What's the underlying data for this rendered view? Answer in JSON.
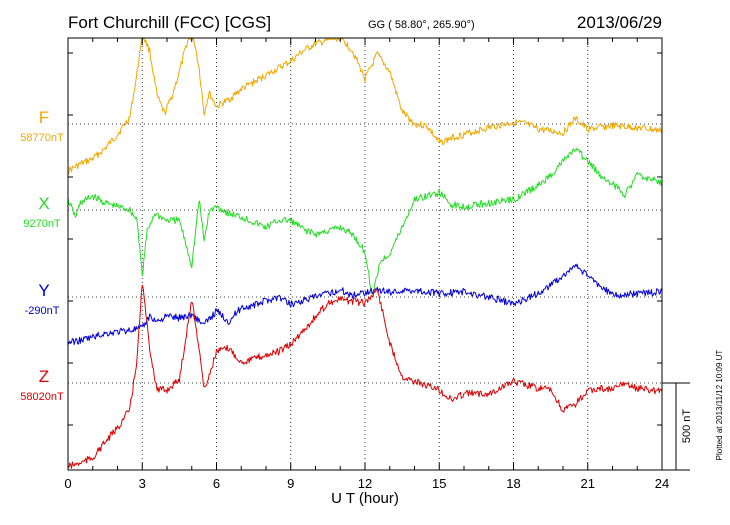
{
  "header": {
    "station": "Fort Churchill (FCC)  [CGS]",
    "coords": "GG ( 58.80°, 265.90°)",
    "date": "2013/06/29"
  },
  "plotted_note": "Plotted at 2013/11/12 10:09 UT",
  "scale_bar_label": "500 nT",
  "colors": {
    "F": "#f0a800",
    "X": "#22dd22",
    "Y": "#0000dd",
    "Z": "#dd0000",
    "axis": "#000000",
    "grid": "#000000"
  },
  "chart_data": {
    "type": "line",
    "xlabel": "U T (hour)",
    "xlim": [
      0,
      24
    ],
    "x_ticks": [
      "0",
      "3",
      "6",
      "9",
      "12",
      "15",
      "18",
      "21",
      "24"
    ],
    "y_unit": "nT",
    "scale_bar_nT": 500,
    "grid": "dotted horizontal baselines",
    "series": [
      {
        "name": "F",
        "baseline_label": "58770nT",
        "baseline": 58770,
        "x": [
          0,
          0.5,
          1,
          1.5,
          2,
          2.5,
          2.8,
          3,
          3.3,
          3.6,
          3.9,
          4.2,
          4.5,
          4.8,
          5,
          5.3,
          5.5,
          5.7,
          6,
          6.5,
          7,
          7.5,
          8,
          8.5,
          9,
          9.5,
          10,
          10.5,
          11,
          11.5,
          12,
          12.5,
          13,
          13.5,
          14,
          14.5,
          15,
          15.5,
          16,
          17,
          18,
          18.5,
          19,
          20,
          20.5,
          21,
          22,
          23,
          24
        ],
        "y": [
          -270,
          -230,
          -200,
          -140,
          -60,
          40,
          300,
          520,
          420,
          160,
          60,
          160,
          300,
          460,
          560,
          320,
          60,
          180,
          100,
          140,
          200,
          240,
          280,
          320,
          360,
          420,
          460,
          480,
          500,
          420,
          260,
          400,
          300,
          70,
          0,
          -10,
          -110,
          -80,
          -60,
          -20,
          10,
          0,
          -30,
          -50,
          30,
          -30,
          -10,
          -20,
          -40
        ]
      },
      {
        "name": "X",
        "baseline_label": "9270nT",
        "baseline": 9270,
        "x": [
          0,
          0.3,
          0.5,
          1,
          1.5,
          2,
          2.5,
          2.8,
          3,
          3.2,
          3.5,
          4,
          4.5,
          5,
          5.3,
          5.5,
          5.7,
          6,
          6.5,
          7,
          7.5,
          8,
          8.5,
          9,
          9.5,
          10,
          10.5,
          11,
          11.5,
          12,
          12.3,
          12.6,
          13,
          13.5,
          14,
          14.5,
          15,
          15.5,
          16,
          17,
          18,
          18.5,
          19,
          19.5,
          20,
          20.5,
          21,
          21.5,
          22,
          22.5,
          23,
          24
        ],
        "y": [
          60,
          -40,
          40,
          80,
          40,
          20,
          0,
          -60,
          -380,
          -120,
          -20,
          -60,
          -60,
          -320,
          60,
          -180,
          -10,
          20,
          -20,
          -40,
          -70,
          -100,
          -60,
          -60,
          -110,
          -140,
          -120,
          -100,
          -140,
          -240,
          -500,
          -300,
          -250,
          -100,
          60,
          80,
          100,
          30,
          20,
          40,
          60,
          100,
          140,
          200,
          280,
          350,
          280,
          200,
          150,
          90,
          200,
          160
        ]
      },
      {
        "name": "Y",
        "baseline_label": "-290nT",
        "baseline": -290,
        "x": [
          0,
          0.5,
          1,
          1.5,
          2,
          2.5,
          3,
          3.3,
          3.6,
          4,
          4.5,
          5,
          5.5,
          6,
          6.5,
          7,
          7.5,
          8,
          8.5,
          9,
          9.5,
          10,
          10.5,
          11,
          11.5,
          12,
          12.5,
          13,
          14,
          15,
          16,
          17,
          18,
          19,
          20,
          20.5,
          21,
          22,
          23,
          24
        ],
        "y": [
          -260,
          -250,
          -230,
          -210,
          -200,
          -190,
          -180,
          -110,
          -140,
          -110,
          -120,
          -100,
          -160,
          -80,
          -140,
          -60,
          -50,
          -20,
          0,
          -40,
          -20,
          0,
          20,
          40,
          10,
          30,
          40,
          30,
          40,
          20,
          30,
          0,
          -40,
          20,
          120,
          180,
          120,
          10,
          20,
          30
        ]
      },
      {
        "name": "Z",
        "baseline_label": "58020nT",
        "baseline": 58020,
        "x": [
          0,
          0.5,
          1,
          1.5,
          2,
          2.5,
          2.8,
          3,
          3.3,
          3.6,
          4,
          4.5,
          5,
          5.3,
          5.5,
          5.7,
          6,
          6.5,
          7,
          7.5,
          8,
          8.5,
          9,
          9.5,
          10,
          10.5,
          11,
          11.5,
          12,
          12.5,
          13,
          13.5,
          14,
          15,
          15.5,
          16,
          17,
          18,
          18.5,
          19,
          19.5,
          20,
          20.5,
          21,
          21.5,
          22,
          22.5,
          23,
          24
        ],
        "y": [
          -480,
          -460,
          -430,
          -340,
          -260,
          -150,
          150,
          580,
          200,
          -40,
          -40,
          20,
          480,
          200,
          -40,
          40,
          180,
          200,
          120,
          140,
          160,
          180,
          220,
          300,
          380,
          460,
          480,
          470,
          460,
          540,
          230,
          40,
          10,
          -40,
          -100,
          -60,
          -60,
          10,
          -10,
          -30,
          -40,
          -160,
          -120,
          -50,
          -30,
          -40,
          0,
          -30,
          -50
        ]
      }
    ]
  }
}
